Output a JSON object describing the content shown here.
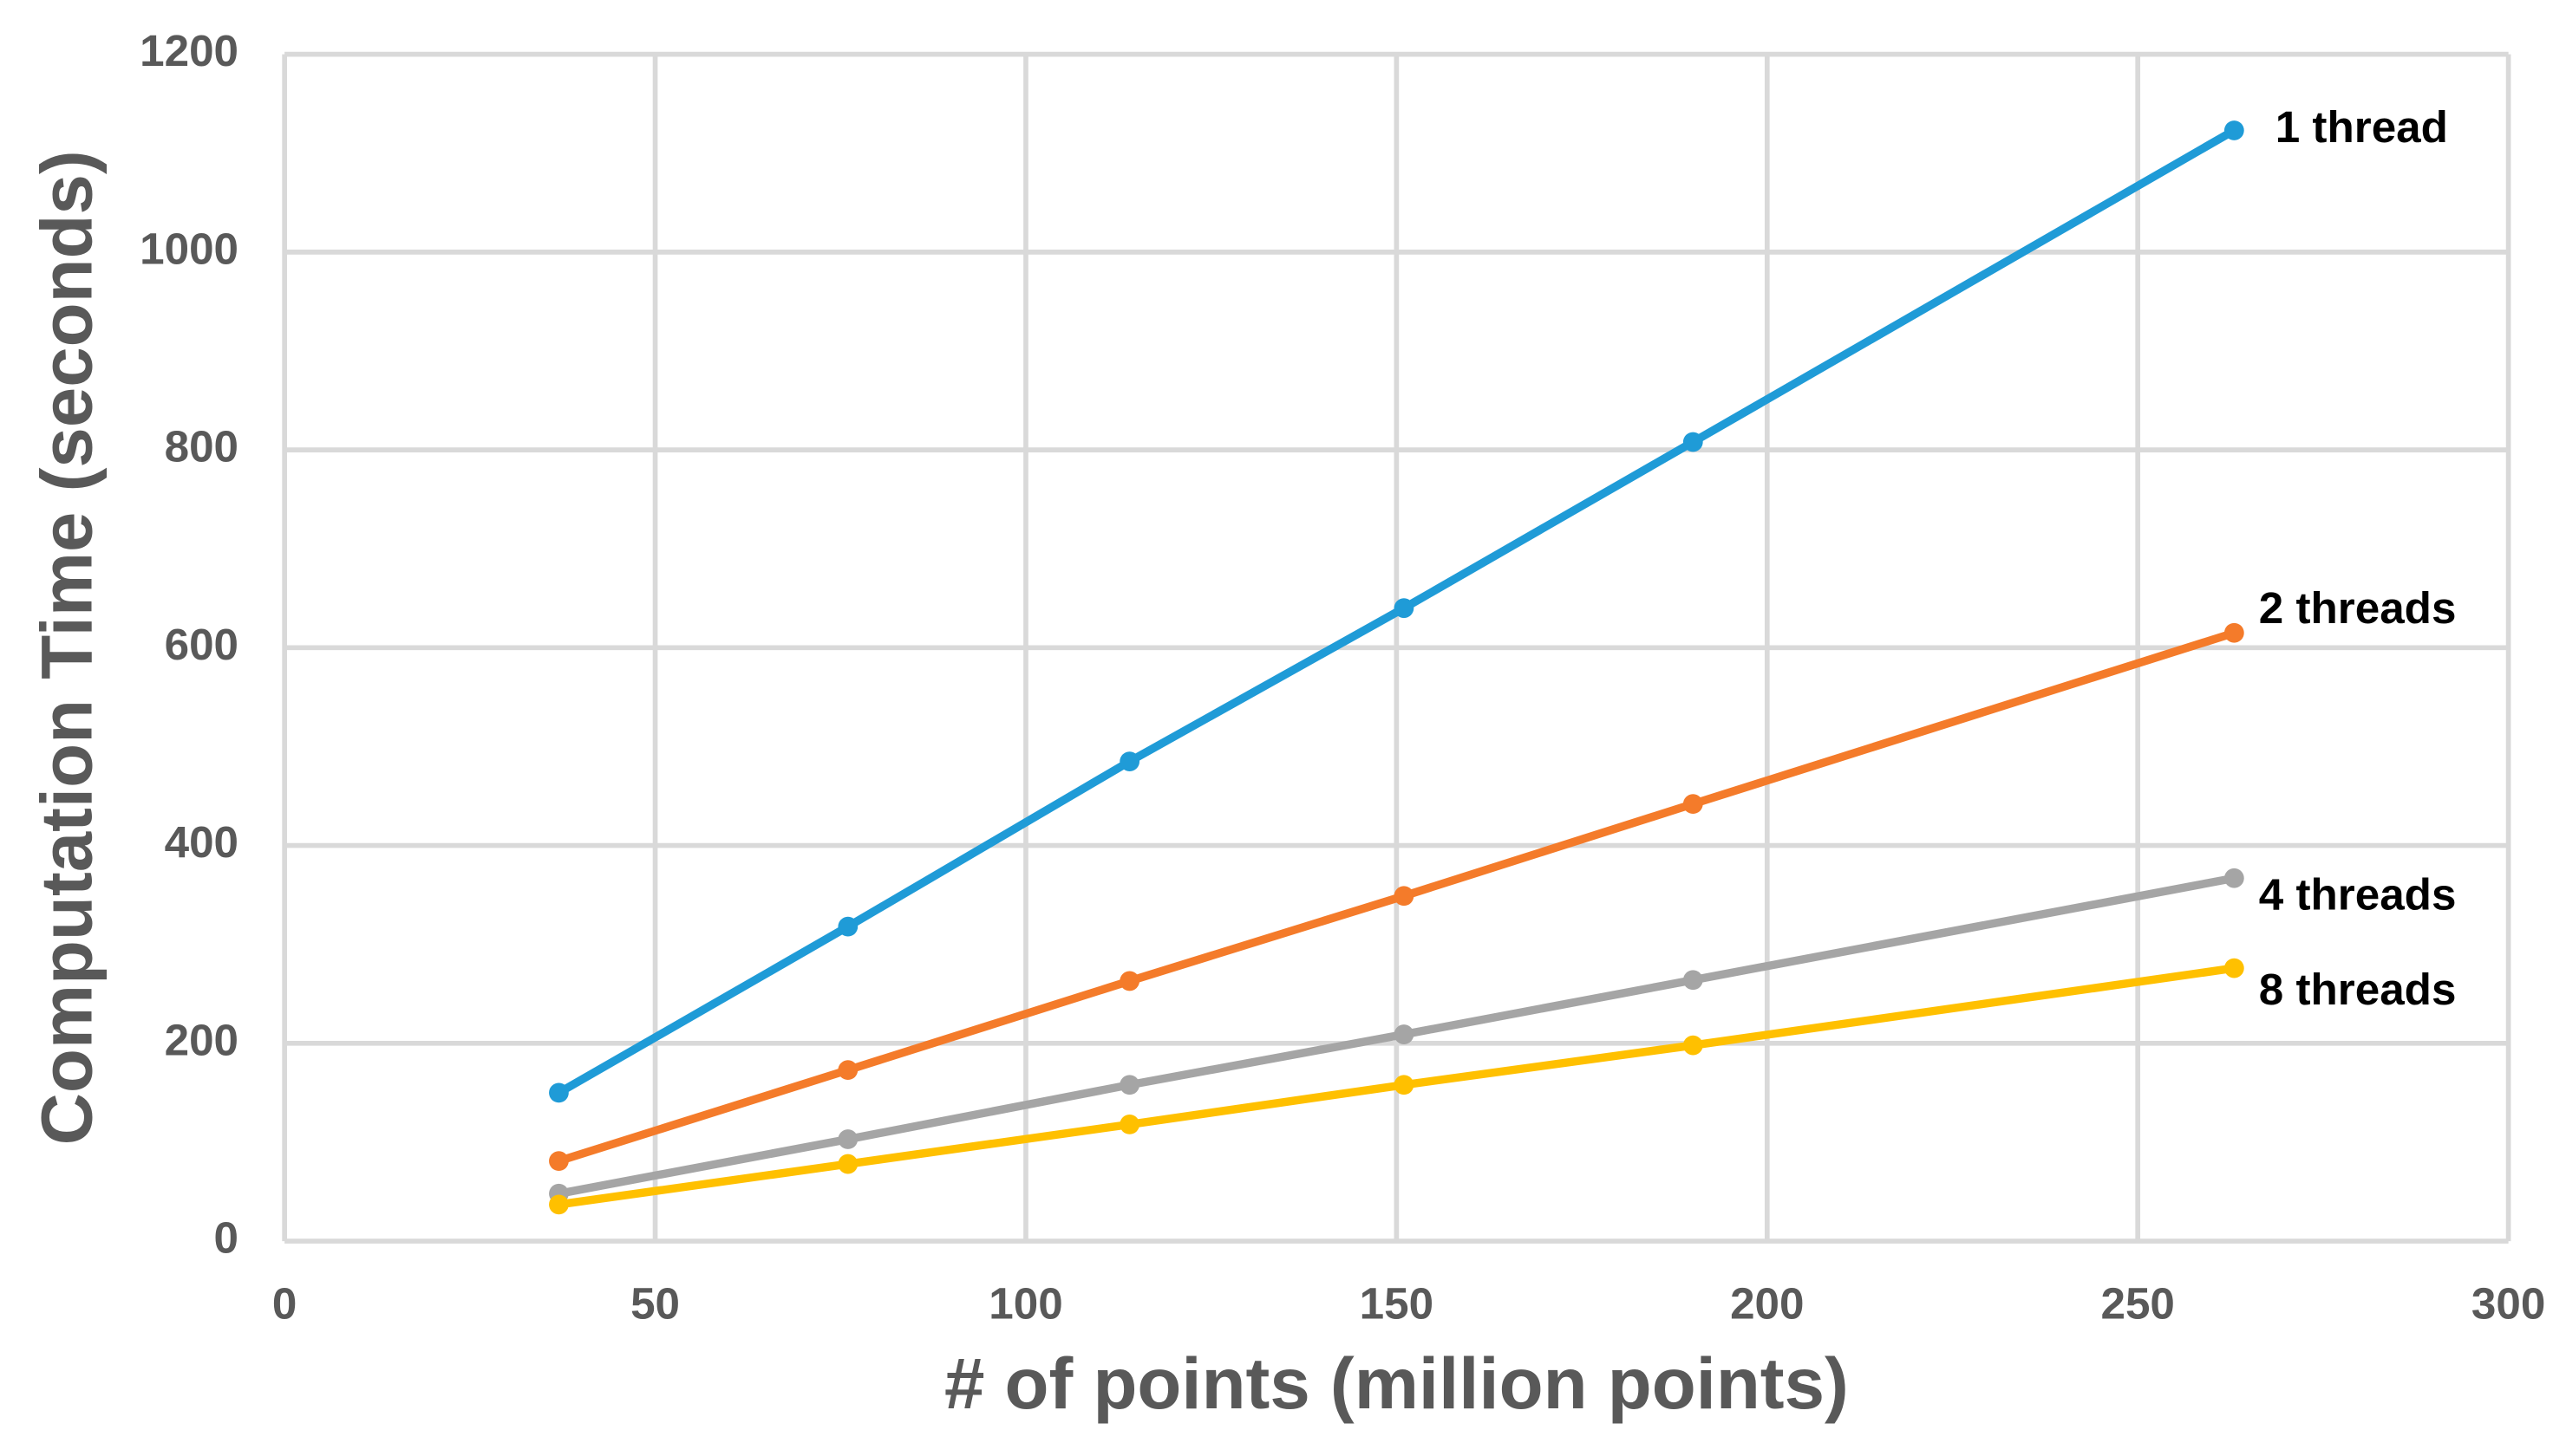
{
  "chart_data": {
    "type": "line",
    "xlabel": "# of points (million points)",
    "ylabel": "Computation Time (seconds)",
    "x": [
      37,
      76,
      114,
      151,
      190,
      263
    ],
    "series": [
      {
        "name": "1 thread",
        "color": "#1f9bd7",
        "values": [
          150,
          318,
          485,
          640,
          808,
          1123
        ]
      },
      {
        "name": "2 threads",
        "color": "#f47b2a",
        "values": [
          81,
          173,
          263,
          349,
          442,
          615
        ]
      },
      {
        "name": "4 threads",
        "color": "#a5a5a5",
        "values": [
          48,
          103,
          158,
          209,
          264,
          367
        ]
      },
      {
        "name": "8 threads",
        "color": "#ffc000",
        "values": [
          37,
          78,
          118,
          158,
          198,
          276
        ]
      }
    ],
    "xlim": [
      0,
      300
    ],
    "xticks": [
      0,
      50,
      100,
      150,
      200,
      250,
      300
    ],
    "ylim": [
      0,
      1200
    ],
    "yticks": [
      0,
      200,
      400,
      600,
      800,
      1000,
      1200
    ],
    "grid": true
  }
}
